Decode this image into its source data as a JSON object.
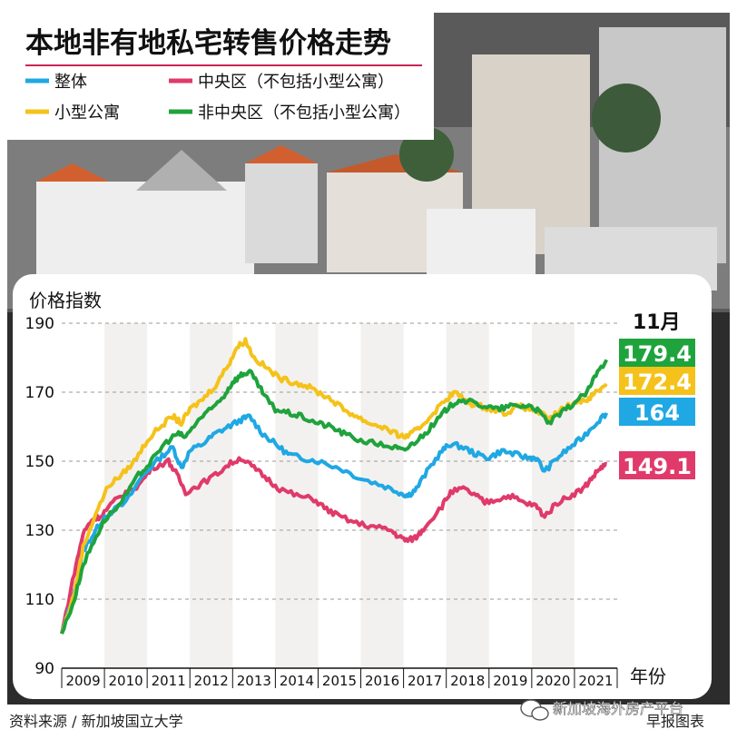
{
  "header": {
    "title": "本地非有地私宅转售价格走势"
  },
  "legend": [
    {
      "name": "整体",
      "color": "#1fa8e3"
    },
    {
      "name": "中央区（不包括小型公寓）",
      "color": "#e03a6a"
    },
    {
      "name": "小型公寓",
      "color": "#f4c21a"
    },
    {
      "name": "非中央区（不包括小型公寓）",
      "color": "#1fa33c"
    }
  ],
  "footer": {
    "source": "资料来源 / 新加坡国立大学",
    "credit": "早报图表",
    "watermark": "新加坡海外房产平台"
  },
  "chart_data": {
    "type": "line",
    "ylabel": "价格指数",
    "xlabel": "年份",
    "ylim": [
      90,
      190
    ],
    "yticks": [
      90,
      110,
      130,
      150,
      170,
      190
    ],
    "x_categories": [
      "2009",
      "2010",
      "2011",
      "2012",
      "2013",
      "2014",
      "2015",
      "2016",
      "2017",
      "2018",
      "2019",
      "2020",
      "2021"
    ],
    "grid": "dashed horizontal",
    "month_label": "11月",
    "series": [
      {
        "name": "整体",
        "color": "#1fa8e3",
        "end_label": "164",
        "points": [
          [
            2009.0,
            100
          ],
          [
            2009.3,
            112
          ],
          [
            2009.5,
            124
          ],
          [
            2009.75,
            129
          ],
          [
            2010.0,
            134
          ],
          [
            2010.5,
            138
          ],
          [
            2010.9,
            146
          ],
          [
            2011.3,
            151
          ],
          [
            2011.6,
            154
          ],
          [
            2011.8,
            148
          ],
          [
            2012.0,
            153
          ],
          [
            2012.3,
            155
          ],
          [
            2012.6,
            158
          ],
          [
            2012.9,
            160
          ],
          [
            2013.2,
            162
          ],
          [
            2013.4,
            163
          ],
          [
            2013.7,
            158
          ],
          [
            2014.0,
            155
          ],
          [
            2014.3,
            152
          ],
          [
            2014.6,
            151
          ],
          [
            2015.0,
            150
          ],
          [
            2015.5,
            148
          ],
          [
            2016.0,
            145
          ],
          [
            2016.5,
            143
          ],
          [
            2016.9,
            141
          ],
          [
            2017.1,
            140
          ],
          [
            2017.3,
            142
          ],
          [
            2017.6,
            148
          ],
          [
            2017.9,
            153
          ],
          [
            2018.1,
            155
          ],
          [
            2018.4,
            154
          ],
          [
            2018.7,
            152
          ],
          [
            2019.0,
            151
          ],
          [
            2019.3,
            153
          ],
          [
            2019.6,
            152
          ],
          [
            2019.9,
            151
          ],
          [
            2020.1,
            151
          ],
          [
            2020.3,
            147
          ],
          [
            2020.6,
            151
          ],
          [
            2020.9,
            154
          ],
          [
            2021.2,
            157
          ],
          [
            2021.5,
            161
          ],
          [
            2021.75,
            164
          ]
        ]
      },
      {
        "name": "中央区（不包括小型公寓）",
        "color": "#e03a6a",
        "end_label": "149.1",
        "points": [
          [
            2009.0,
            100
          ],
          [
            2009.3,
            118
          ],
          [
            2009.5,
            129
          ],
          [
            2009.7,
            133
          ],
          [
            2009.9,
            134
          ],
          [
            2010.2,
            138
          ],
          [
            2010.5,
            141
          ],
          [
            2010.8,
            143
          ],
          [
            2011.1,
            148
          ],
          [
            2011.5,
            150
          ],
          [
            2011.7,
            146
          ],
          [
            2011.9,
            141
          ],
          [
            2012.2,
            143
          ],
          [
            2012.6,
            146
          ],
          [
            2012.9,
            149
          ],
          [
            2013.2,
            151
          ],
          [
            2013.5,
            148
          ],
          [
            2013.8,
            145
          ],
          [
            2014.1,
            142
          ],
          [
            2014.5,
            140
          ],
          [
            2014.9,
            139
          ],
          [
            2015.2,
            136
          ],
          [
            2015.5,
            134
          ],
          [
            2015.9,
            132
          ],
          [
            2016.3,
            131
          ],
          [
            2016.7,
            130
          ],
          [
            2016.9,
            128
          ],
          [
            2017.1,
            127
          ],
          [
            2017.3,
            128
          ],
          [
            2017.5,
            131
          ],
          [
            2017.9,
            137
          ],
          [
            2018.1,
            141
          ],
          [
            2018.4,
            142
          ],
          [
            2018.7,
            140
          ],
          [
            2018.9,
            138
          ],
          [
            2019.2,
            139
          ],
          [
            2019.5,
            140
          ],
          [
            2019.8,
            138
          ],
          [
            2020.1,
            137
          ],
          [
            2020.3,
            134
          ],
          [
            2020.6,
            138
          ],
          [
            2020.9,
            140
          ],
          [
            2021.2,
            142
          ],
          [
            2021.4,
            145
          ],
          [
            2021.6,
            148
          ],
          [
            2021.75,
            149.1
          ]
        ]
      },
      {
        "name": "小型公寓",
        "color": "#f4c21a",
        "end_label": "172.4",
        "points": [
          [
            2009.0,
            100
          ],
          [
            2009.3,
            112
          ],
          [
            2009.5,
            125
          ],
          [
            2009.8,
            135
          ],
          [
            2010.1,
            143
          ],
          [
            2010.4,
            146
          ],
          [
            2010.7,
            150
          ],
          [
            2011.0,
            156
          ],
          [
            2011.3,
            160
          ],
          [
            2011.6,
            163
          ],
          [
            2011.8,
            161
          ],
          [
            2012.0,
            165
          ],
          [
            2012.3,
            168
          ],
          [
            2012.6,
            172
          ],
          [
            2012.9,
            178
          ],
          [
            2013.1,
            183
          ],
          [
            2013.3,
            185
          ],
          [
            2013.5,
            180
          ],
          [
            2013.8,
            177
          ],
          [
            2014.1,
            174
          ],
          [
            2014.4,
            173
          ],
          [
            2014.7,
            172
          ],
          [
            2015.0,
            170
          ],
          [
            2015.3,
            168
          ],
          [
            2015.6,
            165
          ],
          [
            2015.9,
            163
          ],
          [
            2016.2,
            161
          ],
          [
            2016.5,
            160
          ],
          [
            2016.8,
            158
          ],
          [
            2017.0,
            157
          ],
          [
            2017.2,
            158
          ],
          [
            2017.4,
            160
          ],
          [
            2017.7,
            164
          ],
          [
            2018.0,
            168
          ],
          [
            2018.2,
            170
          ],
          [
            2018.5,
            167
          ],
          [
            2018.8,
            166
          ],
          [
            2019.1,
            165
          ],
          [
            2019.4,
            164
          ],
          [
            2019.7,
            166
          ],
          [
            2020.0,
            165
          ],
          [
            2020.2,
            164
          ],
          [
            2020.4,
            162
          ],
          [
            2020.7,
            165
          ],
          [
            2021.0,
            167
          ],
          [
            2021.3,
            168
          ],
          [
            2021.5,
            170
          ],
          [
            2021.75,
            172.4
          ]
        ]
      },
      {
        "name": "非中央区（不包括小型公寓）",
        "color": "#1fa33c",
        "end_label": "179.4",
        "points": [
          [
            2009.0,
            100
          ],
          [
            2009.3,
            110
          ],
          [
            2009.5,
            120
          ],
          [
            2009.8,
            128
          ],
          [
            2010.0,
            133
          ],
          [
            2010.4,
            138
          ],
          [
            2010.8,
            146
          ],
          [
            2011.1,
            150
          ],
          [
            2011.4,
            155
          ],
          [
            2011.7,
            158
          ],
          [
            2011.9,
            157
          ],
          [
            2012.2,
            162
          ],
          [
            2012.5,
            165
          ],
          [
            2012.8,
            169
          ],
          [
            2013.0,
            173
          ],
          [
            2013.2,
            175
          ],
          [
            2013.4,
            176
          ],
          [
            2013.6,
            172
          ],
          [
            2013.8,
            168
          ],
          [
            2014.0,
            165
          ],
          [
            2014.3,
            164
          ],
          [
            2014.6,
            163
          ],
          [
            2015.0,
            161
          ],
          [
            2015.3,
            160
          ],
          [
            2015.6,
            158
          ],
          [
            2016.0,
            156
          ],
          [
            2016.4,
            155
          ],
          [
            2016.8,
            154
          ],
          [
            2017.0,
            153
          ],
          [
            2017.2,
            155
          ],
          [
            2017.5,
            158
          ],
          [
            2017.8,
            162
          ],
          [
            2018.0,
            165
          ],
          [
            2018.3,
            168
          ],
          [
            2018.6,
            167
          ],
          [
            2018.9,
            166
          ],
          [
            2019.2,
            165
          ],
          [
            2019.5,
            166
          ],
          [
            2019.8,
            166
          ],
          [
            2020.0,
            166
          ],
          [
            2020.2,
            164
          ],
          [
            2020.4,
            161
          ],
          [
            2020.7,
            164
          ],
          [
            2021.0,
            167
          ],
          [
            2021.3,
            170
          ],
          [
            2021.5,
            175
          ],
          [
            2021.75,
            179.4
          ]
        ]
      }
    ]
  }
}
